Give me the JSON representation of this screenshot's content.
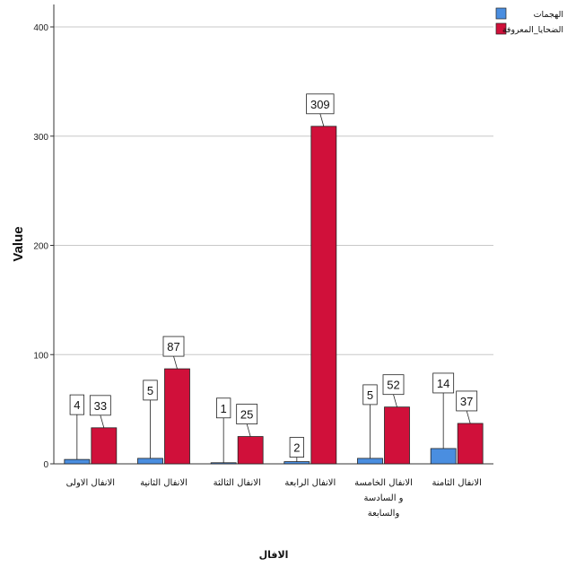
{
  "chart_data": {
    "type": "bar",
    "title": "",
    "xlabel": "الافال",
    "ylabel": "Value",
    "ylim": [
      0,
      400
    ],
    "yticks": [
      0,
      100,
      200,
      300,
      400
    ],
    "grid": true,
    "legend_position": "top-right",
    "categories": [
      [
        "الانفال الاولى"
      ],
      [
        "الانفال الثانية"
      ],
      [
        "الانفال الثالثة"
      ],
      [
        "الانفال الرابعة"
      ],
      [
        "الانفال الخامسة",
        "و السادسة",
        "والسابعة"
      ],
      [
        "الانفال الثامنة"
      ]
    ],
    "series": [
      {
        "name": "الهجمات",
        "color": "#4a8ee0",
        "values": [
          4,
          5,
          1,
          2,
          5,
          14
        ]
      },
      {
        "name": "الضحايا_المعروفة",
        "color": "#d0103a",
        "values": [
          33,
          87,
          25,
          309,
          52,
          37
        ]
      }
    ]
  }
}
